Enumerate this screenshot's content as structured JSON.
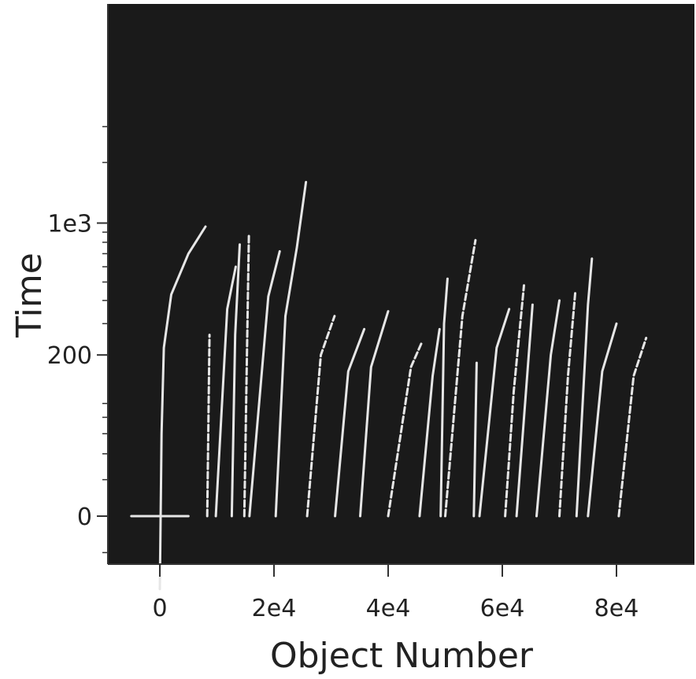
{
  "chart_data": {
    "type": "line",
    "title": "",
    "xlabel": "Object Number",
    "ylabel": "Time",
    "x_scale": "linear",
    "y_scale": "symlog",
    "xlim": [
      -9000,
      93000
    ],
    "x_ticks": [
      {
        "value": 0,
        "label": "0"
      },
      {
        "value": 20000,
        "label": "2e4"
      },
      {
        "value": 40000,
        "label": "4e4"
      },
      {
        "value": 60000,
        "label": "6e4"
      },
      {
        "value": 80000,
        "label": "8e4"
      }
    ],
    "y_ticks": [
      {
        "value": 0,
        "label": "0"
      },
      {
        "value": 200,
        "label": "200"
      },
      {
        "value": 1000,
        "label": "1e3"
      }
    ],
    "grid": false,
    "legend": "none",
    "colors": {
      "plot_background": "#1a1a1a",
      "trace": "#e6e6e6",
      "axis": "#333333"
    },
    "series": [
      {
        "values": [
          [
            -5000,
            0
          ],
          [
            5000,
            0
          ]
        ]
      },
      {
        "values": [
          [
            0,
            -50
          ],
          [
            300,
            60
          ],
          [
            700,
            220
          ],
          [
            2000,
            430
          ],
          [
            5000,
            700
          ],
          [
            8000,
            960
          ]
        ]
      },
      {
        "values": [
          [
            8300,
            0
          ],
          [
            8700,
            260
          ]
        ]
      },
      {
        "values": [
          [
            9800,
            0
          ],
          [
            11800,
            360
          ],
          [
            13300,
            600
          ]
        ]
      },
      {
        "values": [
          [
            12600,
            0
          ],
          [
            13200,
            260
          ],
          [
            14000,
            780
          ]
        ]
      },
      {
        "values": [
          [
            14800,
            0
          ],
          [
            15600,
            860
          ]
        ]
      },
      {
        "values": [
          [
            15700,
            0
          ],
          [
            19000,
            420
          ],
          [
            21000,
            720
          ]
        ]
      },
      {
        "values": [
          [
            20300,
            0
          ],
          [
            22000,
            330
          ],
          [
            24000,
            750
          ],
          [
            25600,
            1600
          ]
        ]
      },
      {
        "values": [
          [
            25800,
            0
          ],
          [
            28200,
            200
          ],
          [
            30600,
            330
          ]
        ]
      },
      {
        "values": [
          [
            30700,
            0
          ],
          [
            33000,
            160
          ],
          [
            35800,
            280
          ]
        ]
      },
      {
        "values": [
          [
            35100,
            0
          ],
          [
            37000,
            170
          ],
          [
            40000,
            350
          ]
        ]
      },
      {
        "values": [
          [
            40000,
            0
          ],
          [
            44000,
            170
          ],
          [
            46000,
            240
          ]
        ]
      },
      {
        "values": [
          [
            45500,
            0
          ],
          [
            47800,
            150
          ],
          [
            49000,
            280
          ]
        ]
      },
      {
        "values": [
          [
            49200,
            0
          ],
          [
            49800,
            300
          ],
          [
            50400,
            520
          ]
        ]
      },
      {
        "values": [
          [
            50000,
            0
          ],
          [
            53000,
            330
          ],
          [
            55300,
            820
          ]
        ]
      },
      {
        "values": [
          [
            55000,
            0
          ],
          [
            55500,
            180
          ]
        ]
      },
      {
        "values": [
          [
            56000,
            0
          ],
          [
            59000,
            220
          ],
          [
            61200,
            360
          ]
        ]
      },
      {
        "values": [
          [
            60500,
            0
          ],
          [
            62000,
            120
          ],
          [
            63800,
            480
          ]
        ]
      },
      {
        "values": [
          [
            62500,
            0
          ],
          [
            65300,
            380
          ]
        ]
      },
      {
        "values": [
          [
            66000,
            0
          ],
          [
            68500,
            200
          ],
          [
            70000,
            400
          ]
        ]
      },
      {
        "values": [
          [
            70000,
            0
          ],
          [
            71500,
            150
          ],
          [
            72800,
            450
          ]
        ]
      },
      {
        "values": [
          [
            73000,
            0
          ],
          [
            75000,
            380
          ],
          [
            75700,
            660
          ]
        ]
      },
      {
        "values": [
          [
            75000,
            0
          ],
          [
            77500,
            160
          ],
          [
            80000,
            300
          ]
        ]
      },
      {
        "values": [
          [
            80400,
            0
          ],
          [
            83000,
            150
          ],
          [
            85200,
            250
          ]
        ]
      }
    ]
  }
}
